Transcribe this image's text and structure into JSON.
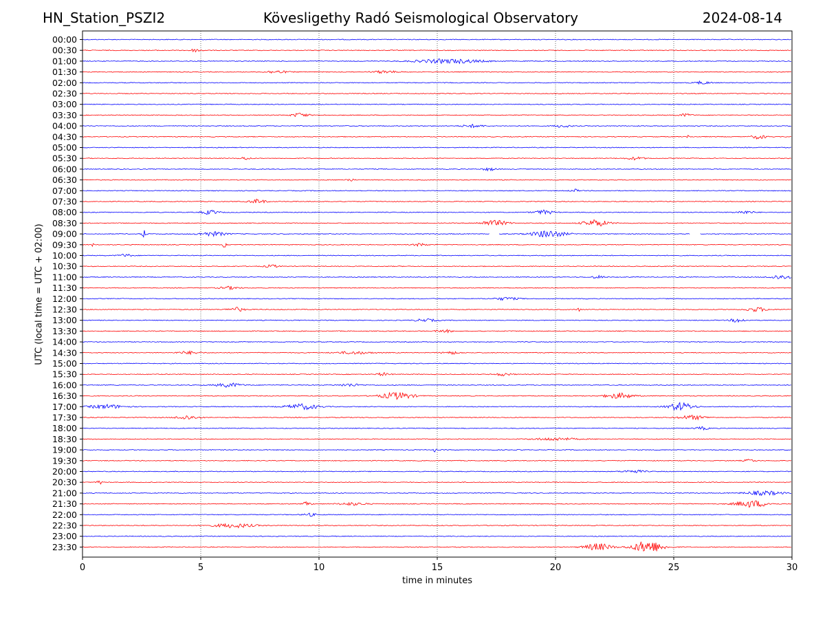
{
  "header": {
    "station": "HN_Station_PSZI2",
    "observatory": "Kövesligethy Radó Seismological Observatory",
    "date": "2024-08-14"
  },
  "chart_data": {
    "type": "line",
    "subtype": "helicorder",
    "xlabel": "time in minutes",
    "ylabel": "UTC (local time = UTC + 02:00)",
    "xlim": [
      0,
      30
    ],
    "xticks": [
      0,
      5,
      10,
      15,
      20,
      25,
      30
    ],
    "grid": "vertical dotted at each x tick",
    "colors": {
      "even": "#0000ff",
      "odd": "#ff0000"
    },
    "rows": [
      "00:00",
      "00:30",
      "01:00",
      "01:30",
      "02:00",
      "02:30",
      "03:00",
      "03:30",
      "04:00",
      "04:30",
      "05:00",
      "05:30",
      "06:00",
      "06:30",
      "07:00",
      "07:30",
      "08:00",
      "08:30",
      "09:00",
      "09:30",
      "10:00",
      "10:30",
      "11:00",
      "11:30",
      "12:00",
      "12:30",
      "13:00",
      "13:30",
      "14:00",
      "14:30",
      "15:00",
      "15:30",
      "16:00",
      "16:30",
      "17:00",
      "17:30",
      "18:00",
      "18:30",
      "19:00",
      "19:30",
      "20:00",
      "20:30",
      "21:00",
      "21:30",
      "22:00",
      "22:30",
      "23:00",
      "23:30"
    ],
    "events": [
      {
        "row": 1,
        "minute": 4.8,
        "amp": 2,
        "dur": 0.5
      },
      {
        "row": 2,
        "minute": 15.5,
        "amp": 3,
        "dur": 2.5
      },
      {
        "row": 3,
        "minute": 8.2,
        "amp": 2,
        "dur": 0.8
      },
      {
        "row": 3,
        "minute": 12.8,
        "amp": 2,
        "dur": 0.8
      },
      {
        "row": 4,
        "minute": 26.2,
        "amp": 2,
        "dur": 0.6
      },
      {
        "row": 7,
        "minute": 9.2,
        "amp": 3,
        "dur": 0.6
      },
      {
        "row": 7,
        "minute": 25.5,
        "amp": 2,
        "dur": 0.5
      },
      {
        "row": 8,
        "minute": 16.5,
        "amp": 2,
        "dur": 0.8
      },
      {
        "row": 8,
        "minute": 20.3,
        "amp": 2,
        "dur": 0.6
      },
      {
        "row": 9,
        "minute": 25.6,
        "amp": 3,
        "dur": 0.1
      },
      {
        "row": 9,
        "minute": 28.6,
        "amp": 3,
        "dur": 0.5
      },
      {
        "row": 11,
        "minute": 6.9,
        "amp": 2,
        "dur": 0.4
      },
      {
        "row": 11,
        "minute": 23.4,
        "amp": 2,
        "dur": 0.6
      },
      {
        "row": 12,
        "minute": 17.2,
        "amp": 2,
        "dur": 0.5
      },
      {
        "row": 13,
        "minute": 11.3,
        "amp": 2,
        "dur": 0.3
      },
      {
        "row": 14,
        "minute": 20.8,
        "amp": 2,
        "dur": 0.3
      },
      {
        "row": 15,
        "minute": 7.4,
        "amp": 3,
        "dur": 0.6
      },
      {
        "row": 16,
        "minute": 5.4,
        "amp": 3,
        "dur": 0.6
      },
      {
        "row": 16,
        "minute": 19.5,
        "amp": 3,
        "dur": 0.7
      },
      {
        "row": 16,
        "minute": 28.0,
        "amp": 2,
        "dur": 0.7
      },
      {
        "row": 17,
        "minute": 17.4,
        "amp": 4,
        "dur": 1.0
      },
      {
        "row": 17,
        "minute": 21.7,
        "amp": 5,
        "dur": 0.9
      },
      {
        "row": 18,
        "minute": 2.6,
        "amp": 7,
        "dur": 0.15
      },
      {
        "row": 18,
        "minute": 5.5,
        "amp": 3,
        "dur": 1.0
      },
      {
        "row": 18,
        "minute": 19.7,
        "amp": 5,
        "dur": 1.2
      },
      {
        "row": 19,
        "minute": 0.4,
        "amp": 3,
        "dur": 0.1
      },
      {
        "row": 19,
        "minute": 6.0,
        "amp": 5,
        "dur": 0.1
      },
      {
        "row": 19,
        "minute": 14.3,
        "amp": 2,
        "dur": 0.5
      },
      {
        "row": 20,
        "minute": 1.8,
        "amp": 2,
        "dur": 0.5
      },
      {
        "row": 21,
        "minute": 8.0,
        "amp": 2,
        "dur": 0.5
      },
      {
        "row": 22,
        "minute": 21.8,
        "amp": 2,
        "dur": 0.5
      },
      {
        "row": 22,
        "minute": 29.5,
        "amp": 3,
        "dur": 0.8
      },
      {
        "row": 23,
        "minute": 6.2,
        "amp": 2,
        "dur": 0.7
      },
      {
        "row": 24,
        "minute": 17.9,
        "amp": 2,
        "dur": 0.9
      },
      {
        "row": 25,
        "minute": 6.5,
        "amp": 3,
        "dur": 0.6
      },
      {
        "row": 25,
        "minute": 21.0,
        "amp": 3,
        "dur": 0.1
      },
      {
        "row": 25,
        "minute": 28.5,
        "amp": 3,
        "dur": 0.8
      },
      {
        "row": 26,
        "minute": 14.5,
        "amp": 2,
        "dur": 0.8
      },
      {
        "row": 26,
        "minute": 27.7,
        "amp": 3,
        "dur": 0.5
      },
      {
        "row": 27,
        "minute": 15.3,
        "amp": 2,
        "dur": 0.6
      },
      {
        "row": 29,
        "minute": 4.5,
        "amp": 2,
        "dur": 0.8
      },
      {
        "row": 29,
        "minute": 11.5,
        "amp": 2,
        "dur": 1.2
      },
      {
        "row": 29,
        "minute": 15.6,
        "amp": 2,
        "dur": 0.6
      },
      {
        "row": 31,
        "minute": 12.7,
        "amp": 2,
        "dur": 0.5
      },
      {
        "row": 31,
        "minute": 17.8,
        "amp": 2,
        "dur": 0.6
      },
      {
        "row": 32,
        "minute": 6.2,
        "amp": 3,
        "dur": 0.9
      },
      {
        "row": 32,
        "minute": 11.3,
        "amp": 2,
        "dur": 0.8
      },
      {
        "row": 33,
        "minute": 13.3,
        "amp": 5,
        "dur": 1.2
      },
      {
        "row": 33,
        "minute": 22.7,
        "amp": 4,
        "dur": 1.0
      },
      {
        "row": 34,
        "minute": 1.0,
        "amp": 3,
        "dur": 1.3
      },
      {
        "row": 34,
        "minute": 9.3,
        "amp": 4,
        "dur": 1.2
      },
      {
        "row": 34,
        "minute": 25.3,
        "amp": 6,
        "dur": 0.9
      },
      {
        "row": 35,
        "minute": 4.4,
        "amp": 3,
        "dur": 0.8
      },
      {
        "row": 35,
        "minute": 25.8,
        "amp": 3,
        "dur": 1.0
      },
      {
        "row": 36,
        "minute": 26.2,
        "amp": 2,
        "dur": 0.5
      },
      {
        "row": 37,
        "minute": 20.0,
        "amp": 2,
        "dur": 1.5
      },
      {
        "row": 38,
        "minute": 14.9,
        "amp": 3,
        "dur": 0.1
      },
      {
        "row": 39,
        "minute": 28.2,
        "amp": 2,
        "dur": 0.4
      },
      {
        "row": 40,
        "minute": 23.3,
        "amp": 2,
        "dur": 0.8
      },
      {
        "row": 41,
        "minute": 0.7,
        "amp": 4,
        "dur": 0.15
      },
      {
        "row": 42,
        "minute": 28.8,
        "amp": 3,
        "dur": 1.3
      },
      {
        "row": 43,
        "minute": 9.5,
        "amp": 3,
        "dur": 0.3
      },
      {
        "row": 43,
        "minute": 11.4,
        "amp": 2,
        "dur": 1.0
      },
      {
        "row": 43,
        "minute": 28.3,
        "amp": 5,
        "dur": 1.2
      },
      {
        "row": 44,
        "minute": 9.6,
        "amp": 2,
        "dur": 0.5
      },
      {
        "row": 45,
        "minute": 6.4,
        "amp": 3,
        "dur": 1.5
      },
      {
        "row": 47,
        "minute": 21.8,
        "amp": 5,
        "dur": 1.0
      },
      {
        "row": 47,
        "minute": 23.9,
        "amp": 9,
        "dur": 1.1
      }
    ]
  }
}
